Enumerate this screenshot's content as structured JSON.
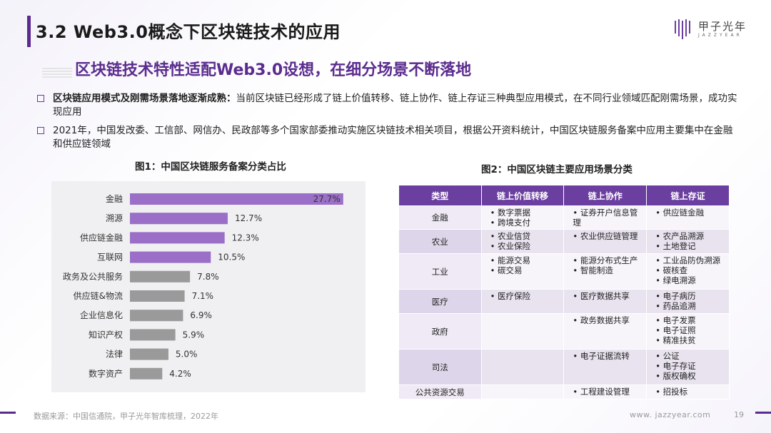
{
  "title": "3.2 Web3.0概念下区块链技术的应用",
  "subtitle": "区块链技术特性适配Web3.0设想，在细分场景不断落地",
  "logo": {
    "name": "甲子光年",
    "sub": "JAZZYEAR"
  },
  "bullets": [
    {
      "bold": "区块链应用模式及刚需场景落地逐渐成熟：",
      "text": "当前区块链已经形成了链上价值转移、链上协作、链上存证三种典型应用模式，在不同行业领域匹配刚需场景，成功实现应用"
    },
    {
      "bold": "",
      "text": "2021年，中国发改委、工信部、网信办、民政部等多个国家部委推动实施区块链技术相关项目，根据公开资料统计，中国区块链服务备案中应用主要集中在金融和供应链领域"
    }
  ],
  "fig1_title": "图1：中国区块链服务备案分类占比",
  "fig2_title": "图2：中国区块链主要应用场景分类",
  "chart_data": {
    "type": "bar",
    "orientation": "horizontal",
    "title": "图1：中国区块链服务备案分类占比",
    "categories": [
      "金融",
      "溯源",
      "供应链金融",
      "互联网",
      "政务及公共服务",
      "供应链&物流",
      "企业信息化",
      "知识产权",
      "法律",
      "数字资产"
    ],
    "values": [
      27.7,
      12.7,
      12.3,
      10.5,
      7.8,
      7.1,
      6.9,
      5.9,
      5.0,
      4.2
    ],
    "labels": [
      "27.7%",
      "12.7%",
      "12.3%",
      "10.5%",
      "7.8%",
      "7.1%",
      "6.9%",
      "5.9%",
      "5.0%",
      "4.2%"
    ],
    "highlight_count": 4,
    "colors": {
      "highlight": "#9b6fc7",
      "normal": "#9a9a9a"
    },
    "xlim": [
      0,
      28
    ],
    "unit": "%"
  },
  "table": {
    "headers": [
      "类型",
      "链上价值转移",
      "链上协作",
      "链上存证"
    ],
    "rows": [
      {
        "type": "金融",
        "c1": [
          "数字票据",
          "跨境支付"
        ],
        "c2": [
          "证券开户信息管理"
        ],
        "c3": [
          "供应链金融"
        ]
      },
      {
        "type": "农业",
        "c1": [
          "农业信贷",
          "农业保险"
        ],
        "c2": [
          "农业供应链管理"
        ],
        "c3": [
          "农产品溯源",
          "土地登记"
        ]
      },
      {
        "type": "工业",
        "c1": [
          "能源交易",
          "碳交易"
        ],
        "c2": [
          "能源分布式生产",
          "智能制造"
        ],
        "c3": [
          "工业品防伪溯源",
          "碳核查",
          "绿电溯源"
        ]
      },
      {
        "type": "医疗",
        "c1": [
          "医疗保险"
        ],
        "c2": [
          "医疗数据共享"
        ],
        "c3": [
          "电子病历",
          "药品追溯"
        ]
      },
      {
        "type": "政府",
        "c1": [],
        "c2": [
          "政务数据共享"
        ],
        "c3": [
          "电子发票",
          "电子证照",
          "精准扶贫"
        ]
      },
      {
        "type": "司法",
        "c1": [],
        "c2": [
          "电子证据流转"
        ],
        "c3": [
          "公证",
          "电子存证",
          "版权确权"
        ]
      },
      {
        "type": "公共资源交易",
        "c1": [],
        "c2": [
          "工程建设管理"
        ],
        "c3": [
          "招投标"
        ]
      }
    ]
  },
  "footer": {
    "source": "数据来源：中国信通院，甲子光年智库梳理，2022年",
    "site": "www. jazzyear.com",
    "page": "19"
  },
  "colors": {
    "brand": "#5b2c8f",
    "bar_highlight": "#9b6fc7",
    "bar_normal": "#9a9a9a"
  }
}
